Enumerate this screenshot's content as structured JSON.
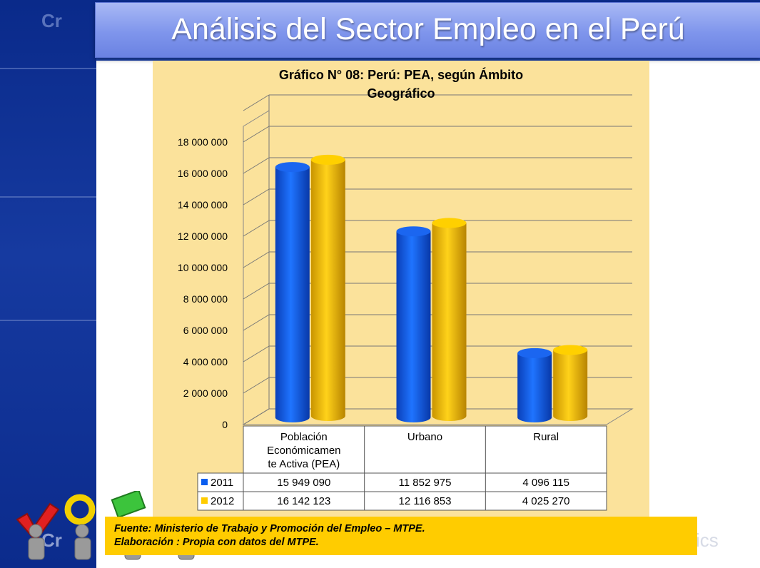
{
  "page": {
    "title": "Análisis del Sector Empleo en el Perú",
    "watermark_left": "Cr",
    "watermark_right": "ics"
  },
  "colors": {
    "series_2011": "#0a5ef0",
    "series_2012": "#ffcc00",
    "panel": "#fbe29b",
    "title_bar": "#7f95ec"
  },
  "chart_data": {
    "type": "bar",
    "title": "Gráfico N° 08: Perú: PEA, según Ámbito Geográfico",
    "title_lines": [
      "Gráfico N° 08: Perú: PEA, según Ámbito",
      "Geográfico"
    ],
    "categories": [
      "Población Económicamente Activa (PEA)",
      "Urbano",
      "Rural"
    ],
    "category_lines": [
      [
        "Población",
        "Económicamen",
        "te Activa (PEA)"
      ],
      [
        "Urbano"
      ],
      [
        "Rural"
      ]
    ],
    "series": [
      {
        "name": "2011",
        "values": [
          15949090,
          11852975,
          4096115
        ],
        "labels": [
          "15 949 090",
          "11 852 975",
          "4 096 115"
        ]
      },
      {
        "name": "2012",
        "values": [
          16142123,
          12116853,
          4025270
        ],
        "labels": [
          "16 142 123",
          "12 116 853",
          "4 025 270"
        ]
      }
    ],
    "yticks": [
      "0",
      "2 000 000",
      "4 000 000",
      "6 000 000",
      "8 000 000",
      "10 000 000",
      "12 000 000",
      "14 000 000",
      "16 000 000",
      "18 000 000"
    ],
    "ylim": [
      0,
      18000000
    ],
    "grid": true,
    "data_table": true,
    "style": "3d-cylinder"
  },
  "source": {
    "line1": "Fuente: Ministerio de Trabajo y Promoción del Empleo – MTPE.",
    "line2": "Elaboración : Propia con datos del MTPE."
  }
}
